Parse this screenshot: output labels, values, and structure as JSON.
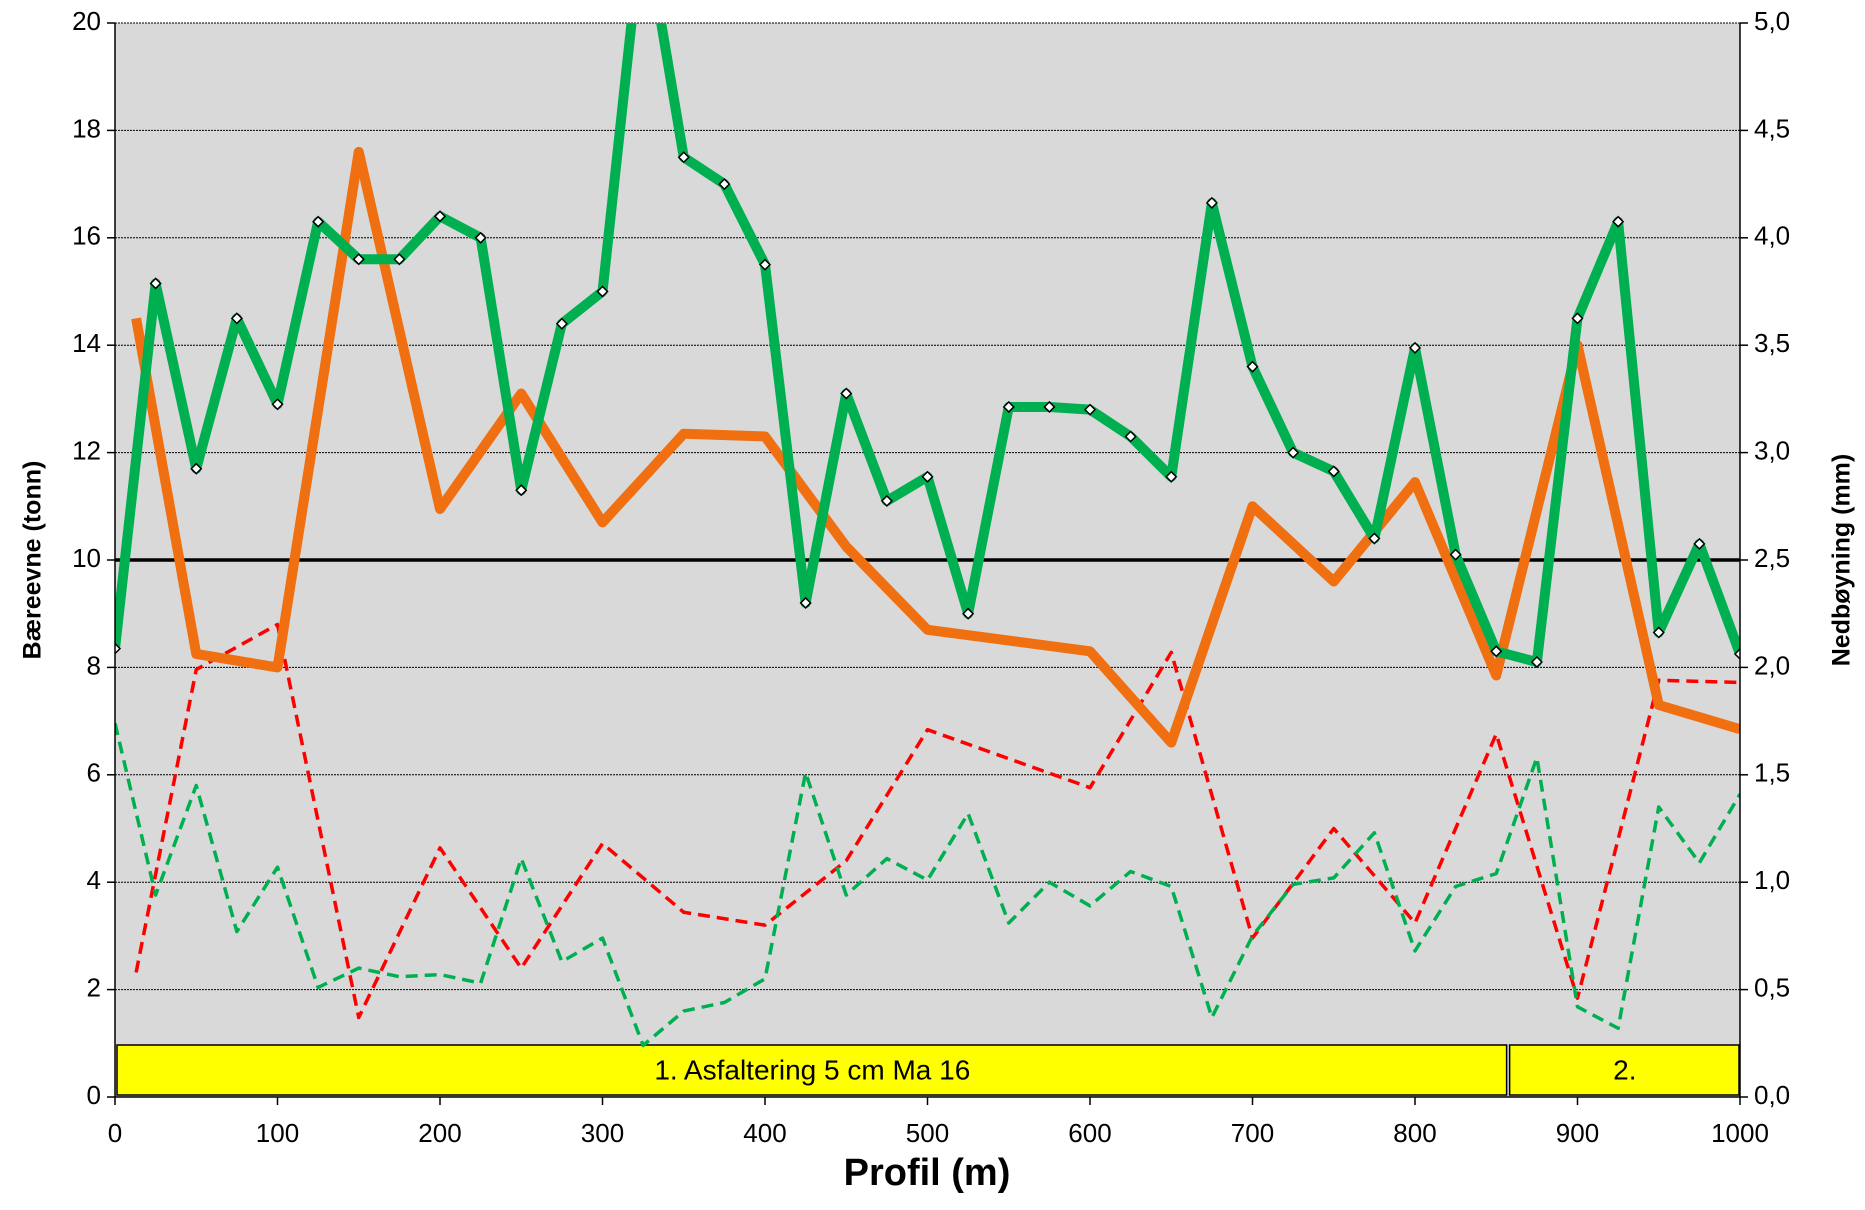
{
  "chart_data": {
    "type": "line",
    "x_label": "Profil (m)",
    "y_label": "Bæreevne (tonn)",
    "y2_label": "Nedbøyning (mm)",
    "xlim": [
      0,
      1000
    ],
    "xticks": [
      0,
      100,
      200,
      300,
      400,
      500,
      600,
      700,
      800,
      900,
      1000
    ],
    "ylim": [
      0,
      20
    ],
    "yticks": [
      0,
      2,
      4,
      6,
      8,
      10,
      12,
      14,
      16,
      18,
      20
    ],
    "y2lim": [
      0,
      5
    ],
    "y2ticks": [
      {
        "value": 0,
        "label": "0,0"
      },
      {
        "value": 0.5,
        "label": "0,5"
      },
      {
        "value": 1,
        "label": "1,0"
      },
      {
        "value": 1.5,
        "label": "1,5"
      },
      {
        "value": 2,
        "label": "2,0"
      },
      {
        "value": 2.5,
        "label": "2,5"
      },
      {
        "value": 3,
        "label": "3,0"
      },
      {
        "value": 3.5,
        "label": "3,5"
      },
      {
        "value": 4,
        "label": "4,0"
      },
      {
        "value": 4.5,
        "label": "4,5"
      },
      {
        "value": 5,
        "label": "5,0"
      }
    ],
    "grid": true,
    "background": "#d9d9d9",
    "hline": 10,
    "hline_color": "#000000",
    "series": [
      {
        "color": "#f06f10",
        "style": "solid",
        "x": [
          13,
          50,
          100,
          150,
          200,
          250,
          300,
          350,
          400,
          450,
          500,
          600,
          650,
          700,
          750,
          800,
          850,
          900,
          950,
          1000
        ],
        "values": [
          14.5,
          8.25,
          8.0,
          17.6,
          10.95,
          13.1,
          10.7,
          12.35,
          12.3,
          10.25,
          8.7,
          8.3,
          6.6,
          11.0,
          9.6,
          11.45,
          7.85,
          14.0,
          7.3,
          6.85
        ]
      },
      {
        "color": "#00b050",
        "style": "solid",
        "markers": true,
        "x": [
          0,
          25,
          50,
          75,
          100,
          125,
          150,
          175,
          200,
          225,
          250,
          275,
          300,
          325,
          350,
          375,
          400,
          425,
          450,
          475,
          500,
          525,
          550,
          575,
          600,
          625,
          650,
          675,
          700,
          725,
          750,
          775,
          800,
          825,
          850,
          875,
          900,
          925,
          950,
          975,
          1000
        ],
        "values": [
          8.35,
          15.15,
          11.7,
          14.5,
          12.9,
          16.3,
          15.6,
          15.6,
          16.4,
          16.0,
          11.3,
          14.4,
          15.0,
          22,
          17.5,
          17.0,
          15.5,
          9.2,
          13.1,
          11.1,
          11.55,
          9.0,
          12.85,
          12.85,
          12.8,
          12.3,
          11.55,
          16.65,
          13.6,
          12.0,
          11.65,
          10.4,
          13.95,
          10.1,
          8.3,
          8.1,
          14.5,
          16.3,
          8.65,
          10.3,
          8.25
        ]
      },
      {
        "color": "#ff0000",
        "style": "dashed",
        "axis": "y2",
        "x": [
          13,
          50,
          100,
          150,
          200,
          250,
          300,
          350,
          400,
          450,
          500,
          600,
          650,
          700,
          750,
          800,
          850,
          900,
          950,
          1000
        ],
        "values": [
          0.58,
          1.99,
          2.2,
          0.37,
          1.16,
          0.6,
          1.18,
          0.86,
          0.8,
          1.1,
          1.71,
          1.44,
          2.07,
          0.74,
          1.25,
          0.81,
          1.69,
          0.46,
          1.94,
          1.93
        ]
      },
      {
        "color": "#00b050",
        "style": "dashed",
        "axis": "y2",
        "x": [
          0,
          25,
          50,
          75,
          100,
          125,
          150,
          175,
          200,
          225,
          250,
          275,
          300,
          325,
          350,
          375,
          400,
          425,
          450,
          475,
          500,
          525,
          550,
          575,
          600,
          625,
          650,
          675,
          700,
          725,
          750,
          775,
          800,
          825,
          850,
          875,
          900,
          925,
          950,
          975,
          1000
        ],
        "values": [
          1.74,
          0.94,
          1.45,
          0.77,
          1.07,
          0.51,
          0.6,
          0.56,
          0.57,
          0.53,
          1.11,
          0.63,
          0.74,
          0.24,
          0.4,
          0.44,
          0.55,
          1.51,
          0.94,
          1.11,
          1.01,
          1.32,
          0.81,
          1.0,
          0.89,
          1.05,
          0.98,
          0.37,
          0.75,
          0.99,
          1.02,
          1.23,
          0.68,
          0.98,
          1.04,
          1.58,
          0.42,
          0.32,
          1.35,
          1.09,
          1.41
        ]
      }
    ],
    "segments": [
      {
        "label": "1. Asfaltering 5 cm Ma 16",
        "start": 0,
        "end": 857,
        "color": "#ffff00"
      },
      {
        "label": "2.",
        "start": 857,
        "end": 1000,
        "color": "#ffff00"
      }
    ]
  }
}
